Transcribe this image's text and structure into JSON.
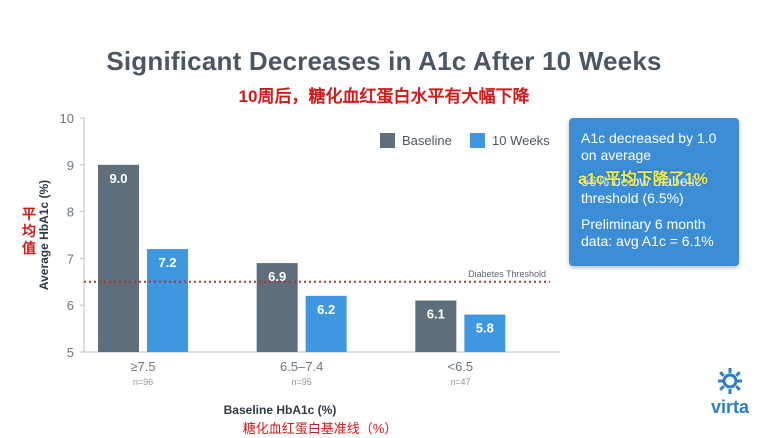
{
  "title": "Significant Decreases in A1c After 10 Weeks",
  "subtitle_cn": "10周后，糖化血红蛋白水平有大幅下降",
  "ylabel_cn": "平均值",
  "xlabel": "Baseline HbA1c (%)",
  "xlabel_cn": "糖化血红蛋白基准线（%）",
  "callout": {
    "line1": "A1c decreased by 1.0 on average",
    "line2": "56% below diabetic threshold (6.5%)",
    "line3": "Preliminary 6 month data: avg A1c = 6.1%",
    "overlay_cn": "a1c平均下降了1%"
  },
  "logo": {
    "text": "virta",
    "icon": "sun-gear-icon"
  },
  "chart_data": {
    "type": "bar",
    "ylabel": "Average HbA1c (%)",
    "xlabel": "Baseline HbA1c (%)",
    "ylim": [
      5,
      10
    ],
    "yticks": [
      5,
      6,
      7,
      8,
      9,
      10
    ],
    "categories": [
      "≥7.5",
      "6.5–7.4",
      "<6.5"
    ],
    "category_notes": [
      "n=96",
      "n=95",
      "n=47"
    ],
    "series": [
      {
        "name": "Baseline",
        "color": "#5e6f7b",
        "values": [
          9.0,
          6.9,
          6.1
        ]
      },
      {
        "name": "10 Weeks",
        "color": "#3f97df",
        "values": [
          7.2,
          6.2,
          5.8
        ]
      }
    ],
    "data_labels": [
      [
        "9.0",
        "6.9",
        "6.1"
      ],
      [
        "7.2",
        "6.2",
        "5.8"
      ]
    ],
    "reference_line": {
      "value": 6.5,
      "label": "Diabetes Threshold",
      "color": "#a33a3a"
    },
    "legend_position": "top-right",
    "grid": false
  }
}
